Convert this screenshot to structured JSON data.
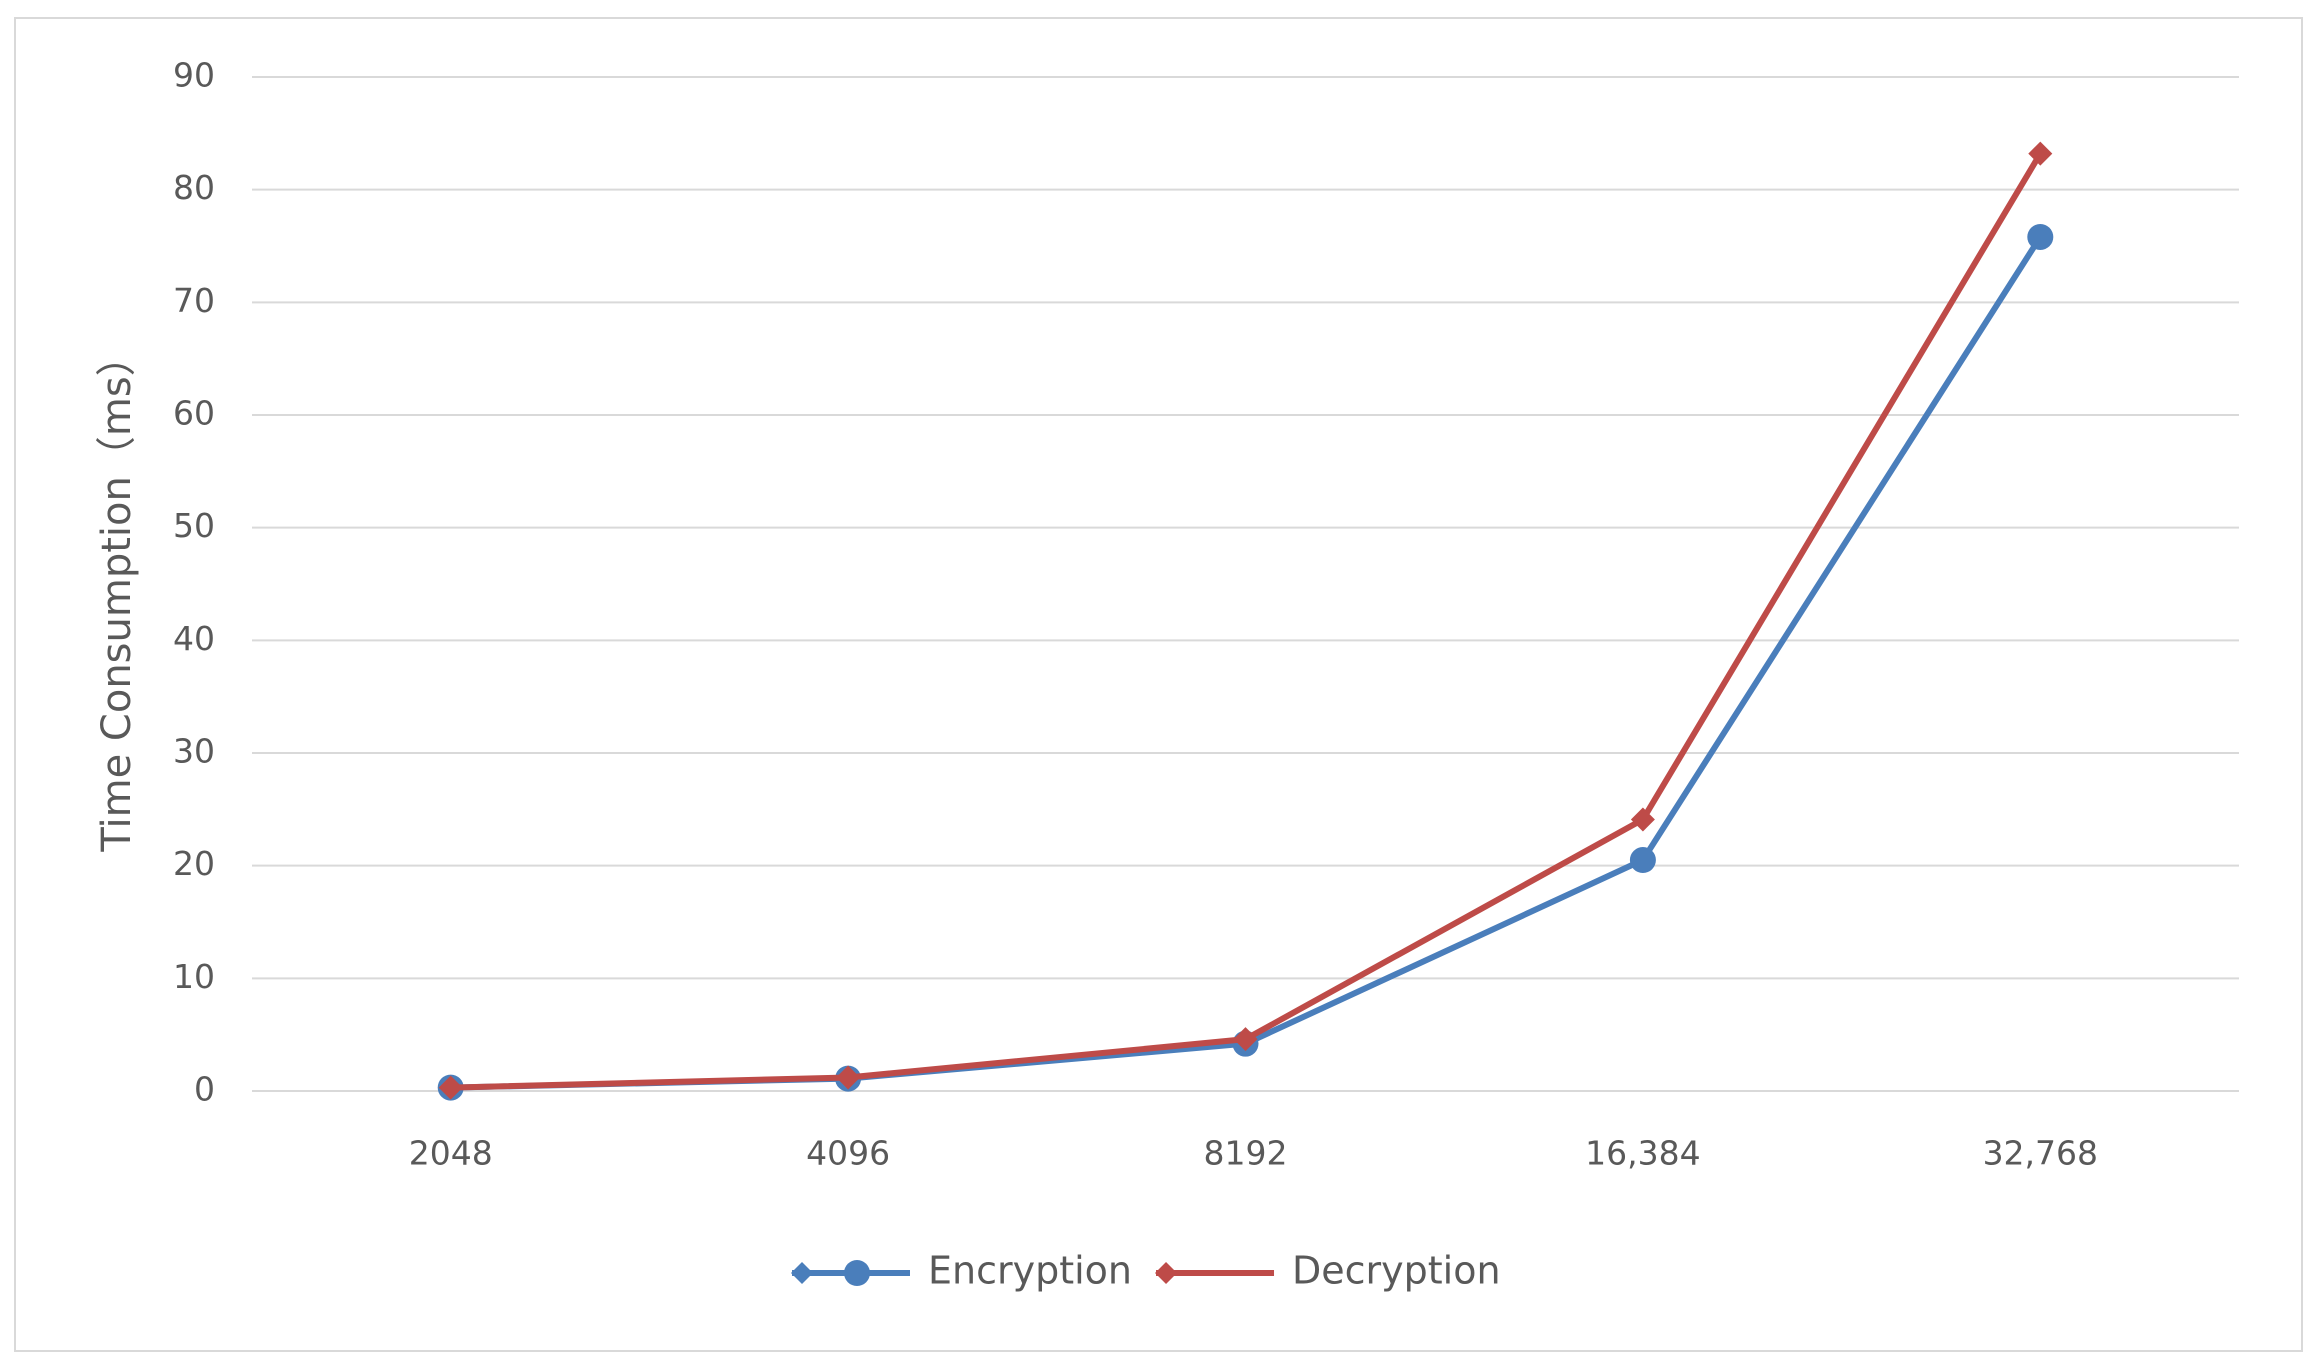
{
  "chart_data": {
    "type": "line",
    "y_label": "Time Consumption（ms）",
    "categories": [
      "2048",
      "4096",
      "8192",
      "16,384",
      "32,768"
    ],
    "series": [
      {
        "name": "Encryption",
        "color": "#4a7ebb",
        "marker": "circle",
        "values": [
          0.3,
          1.1,
          4.2,
          20.5,
          75.8
        ]
      },
      {
        "name": "Decryption",
        "color": "#be4b48",
        "marker": "diamond",
        "values": [
          0.3,
          1.2,
          4.6,
          24.1,
          83.2
        ]
      }
    ],
    "ylim": [
      0,
      90
    ],
    "yticks": [
      0,
      10,
      20,
      30,
      40,
      50,
      60,
      70,
      80,
      90
    ],
    "grid": true,
    "legend": "bottom"
  }
}
